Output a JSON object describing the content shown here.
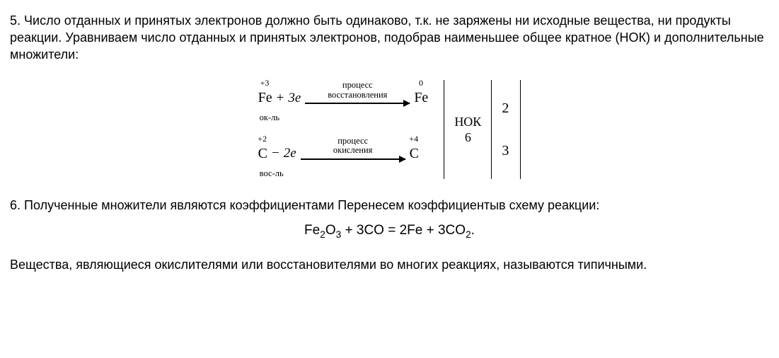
{
  "p5": {
    "number": "5. ",
    "text": "Число отданных и принятых электронов должно быть одинаково, т.к. не заряжены ни исходные вещества, ни продукты реакции. Уравниваем число отданных и принятых электронов, подобрав наименьшее общее кратное (НОК) и дополнительные множители:"
  },
  "diagram": {
    "row1": {
      "left_ox": "+3",
      "left_el": "Fe",
      "op": "+",
      "e": "3e",
      "arrow_l1": "процесс",
      "arrow_l2": "восстановления",
      "right_ox": "0",
      "right_el": "Fe",
      "role": "ок-ль"
    },
    "row2": {
      "left_ox": "+2",
      "left_el": "С",
      "op": "−",
      "e": "2e",
      "arrow_l1": "процесс",
      "arrow_l2": "окисления",
      "right_ox": "+4",
      "right_el": "С",
      "role": "вос-ль"
    },
    "nok_label": "НОК",
    "nok_value": "6",
    "mult1": "2",
    "mult2": "3"
  },
  "p6": {
    "number": "6. ",
    "text": "Полученные множители являются коэффициентами Перенесем коэффициентыв схему реакции:"
  },
  "equation_plain": "Fe2O3 + 3CO = 2Fe + 3CO2.",
  "p7": "Вещества, являющиеся  окислителями или восстановителями во многих реакциях, называются типичными."
}
